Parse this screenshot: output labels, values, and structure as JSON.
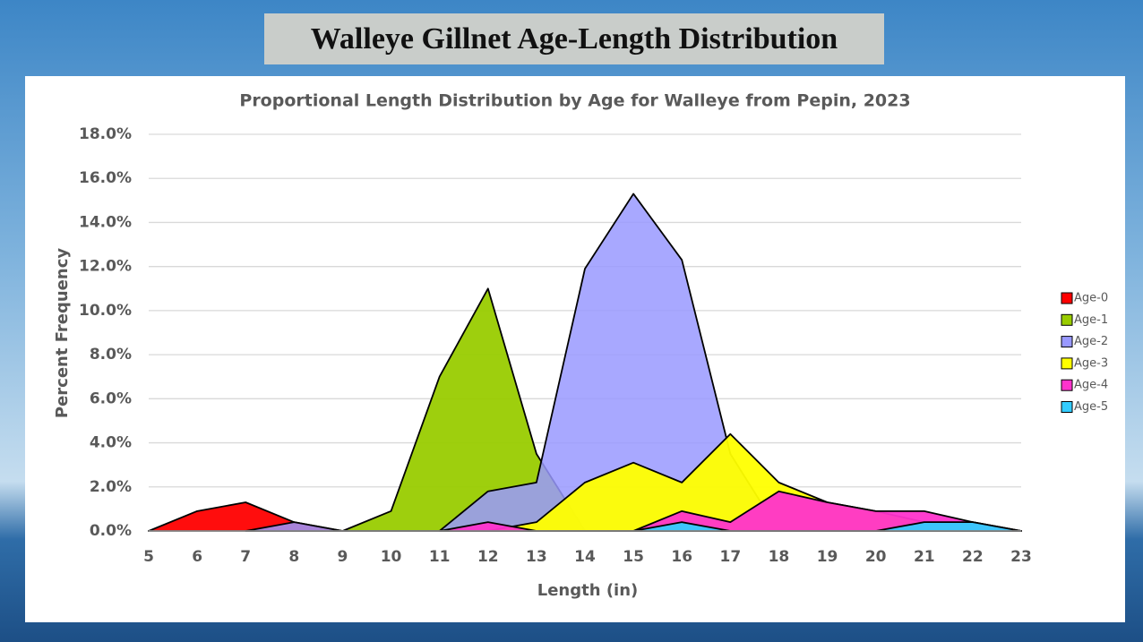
{
  "header": {
    "title": "Walleye Gillnet Age-Length Distribution"
  },
  "chart_data": {
    "type": "area",
    "title": "Proportional Length Distribution by Age for Walleye from Pepin, 2023",
    "x_label": "Length (in)",
    "y_label": "Percent Frequency",
    "x": [
      5,
      6,
      7,
      8,
      9,
      10,
      11,
      12,
      13,
      14,
      15,
      16,
      17,
      18,
      19,
      20,
      21,
      22,
      23
    ],
    "xlim": [
      5,
      23
    ],
    "xticks": [
      5,
      6,
      7,
      8,
      9,
      10,
      11,
      12,
      13,
      14,
      15,
      16,
      17,
      18,
      19,
      20,
      21,
      22,
      23
    ],
    "ylim": [
      0,
      18
    ],
    "yticks": [
      {
        "value": 0,
        "label": "0.0%"
      },
      {
        "value": 2,
        "label": "2.0%"
      },
      {
        "value": 4,
        "label": "4.0%"
      },
      {
        "value": 6,
        "label": "6.0%"
      },
      {
        "value": 8,
        "label": "8.0%"
      },
      {
        "value": 10,
        "label": "10.0%"
      },
      {
        "value": 12,
        "label": "12.0%"
      },
      {
        "value": 14,
        "label": "14.0%"
      },
      {
        "value": 16,
        "label": "16.0%"
      },
      {
        "value": 18,
        "label": "18.0%"
      }
    ],
    "grid": true,
    "legend": "right",
    "series": [
      {
        "name": "Age-0",
        "color": "#ff0000",
        "values": [
          0,
          0.9,
          1.3,
          0.4,
          0,
          null,
          null,
          null,
          null,
          null,
          null,
          null,
          null,
          null,
          null,
          null,
          null,
          null,
          null
        ]
      },
      {
        "name": "Age-1",
        "color": "#99cc00",
        "values": [
          null,
          null,
          null,
          null,
          0,
          0.9,
          7.0,
          11.0,
          3.5,
          0,
          null,
          null,
          null,
          null,
          null,
          null,
          null,
          null,
          null
        ]
      },
      {
        "name": "Age-2",
        "color": "#9999ff",
        "values": [
          null,
          null,
          0,
          0.4,
          0,
          0,
          0,
          1.8,
          2.2,
          11.9,
          15.3,
          12.3,
          3.5,
          0,
          null,
          null,
          null,
          null,
          null
        ]
      },
      {
        "name": "Age-3",
        "color": "#ffff00",
        "values": [
          null,
          null,
          null,
          null,
          null,
          null,
          null,
          0,
          0.4,
          2.2,
          3.1,
          2.2,
          4.4,
          2.2,
          1.3,
          0.9,
          0.4,
          0.4,
          0
        ]
      },
      {
        "name": "Age-4",
        "color": "#ff33cc",
        "values": [
          null,
          null,
          null,
          null,
          null,
          null,
          0,
          0.4,
          0,
          0,
          0,
          0.9,
          0.4,
          1.8,
          1.3,
          0.9,
          0.9,
          0.4,
          0
        ]
      },
      {
        "name": "Age-5",
        "color": "#33ccff",
        "values": [
          null,
          null,
          null,
          null,
          null,
          null,
          null,
          null,
          null,
          null,
          0,
          0.4,
          0,
          0,
          0,
          0,
          0.4,
          0.4,
          0
        ]
      }
    ]
  }
}
